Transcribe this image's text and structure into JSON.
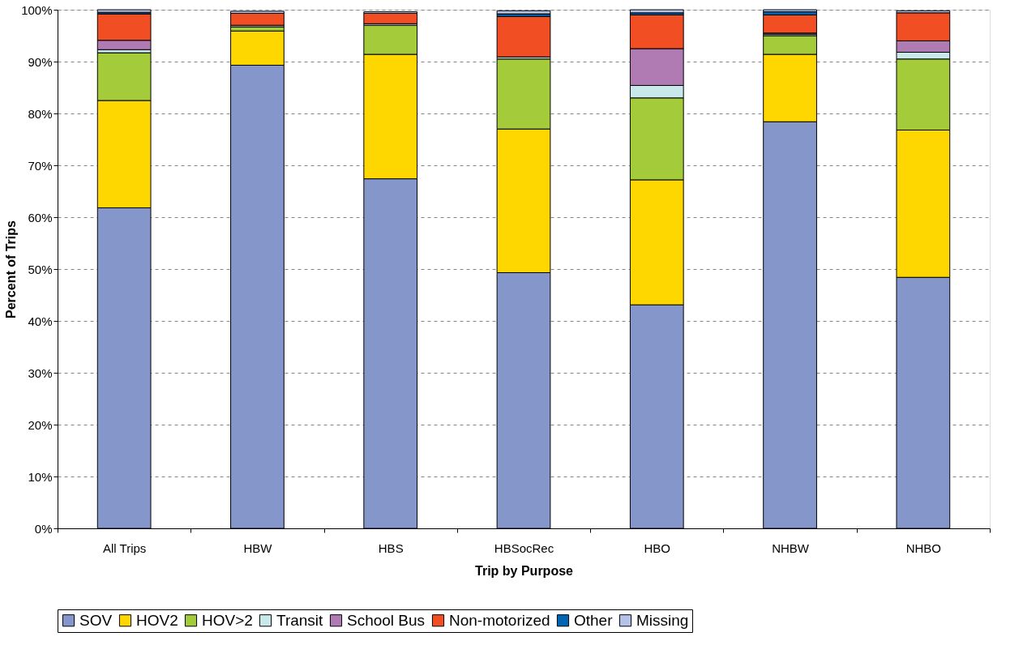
{
  "chart_data": {
    "type": "bar",
    "stacked": true,
    "xlabel": "Trip by Purpose",
    "ylabel": "Percent of Trips",
    "categories": [
      "All Trips",
      "HBW",
      "HBS",
      "HBSocRec",
      "HBO",
      "NHBW",
      "NHBO"
    ],
    "series": [
      {
        "name": "SOV",
        "color": "#8596cb",
        "values": [
          61.8,
          89.3,
          67.4,
          49.3,
          43.1,
          78.4,
          48.4
        ]
      },
      {
        "name": "HOV2",
        "color": "#ffd700",
        "values": [
          20.7,
          6.6,
          24.0,
          27.7,
          24.1,
          13.0,
          28.4
        ]
      },
      {
        "name": "HOV>2",
        "color": "#a4cc3a",
        "values": [
          9.2,
          0.8,
          5.6,
          13.5,
          15.8,
          3.6,
          13.7
        ]
      },
      {
        "name": "Transit",
        "color": "#c8e8ea",
        "values": [
          0.6,
          0.3,
          0.3,
          0.4,
          2.4,
          0.3,
          1.3
        ]
      },
      {
        "name": "School Bus",
        "color": "#b07ab3",
        "values": [
          1.8,
          null,
          null,
          null,
          7.1,
          0.2,
          2.2
        ]
      },
      {
        "name": "Non-motorized",
        "color": "#f24e24",
        "values": [
          5.1,
          2.3,
          2.0,
          7.8,
          6.5,
          3.5,
          5.4
        ]
      },
      {
        "name": "Other",
        "color": "#0066b3",
        "values": [
          0.3,
          null,
          null,
          0.5,
          0.4,
          0.6,
          null
        ]
      },
      {
        "name": "Missing",
        "color": "#b4c2e8",
        "values": [
          0.5,
          0.4,
          0.3,
          0.6,
          0.6,
          0.4,
          0.4
        ]
      }
    ],
    "ylim": [
      0,
      100
    ],
    "yticks": [
      {
        "value": 0,
        "label": "0%"
      },
      {
        "value": 10,
        "label": "10%"
      },
      {
        "value": 20,
        "label": "20%"
      },
      {
        "value": 30,
        "label": "30%"
      },
      {
        "value": 40,
        "label": "40%"
      },
      {
        "value": 50,
        "label": "50%"
      },
      {
        "value": 60,
        "label": "60%"
      },
      {
        "value": 70,
        "label": "70%"
      },
      {
        "value": 80,
        "label": "80%"
      },
      {
        "value": 90,
        "label": "90%"
      },
      {
        "value": 100,
        "label": "100%"
      }
    ],
    "grid": "y",
    "legend": "bottom"
  }
}
